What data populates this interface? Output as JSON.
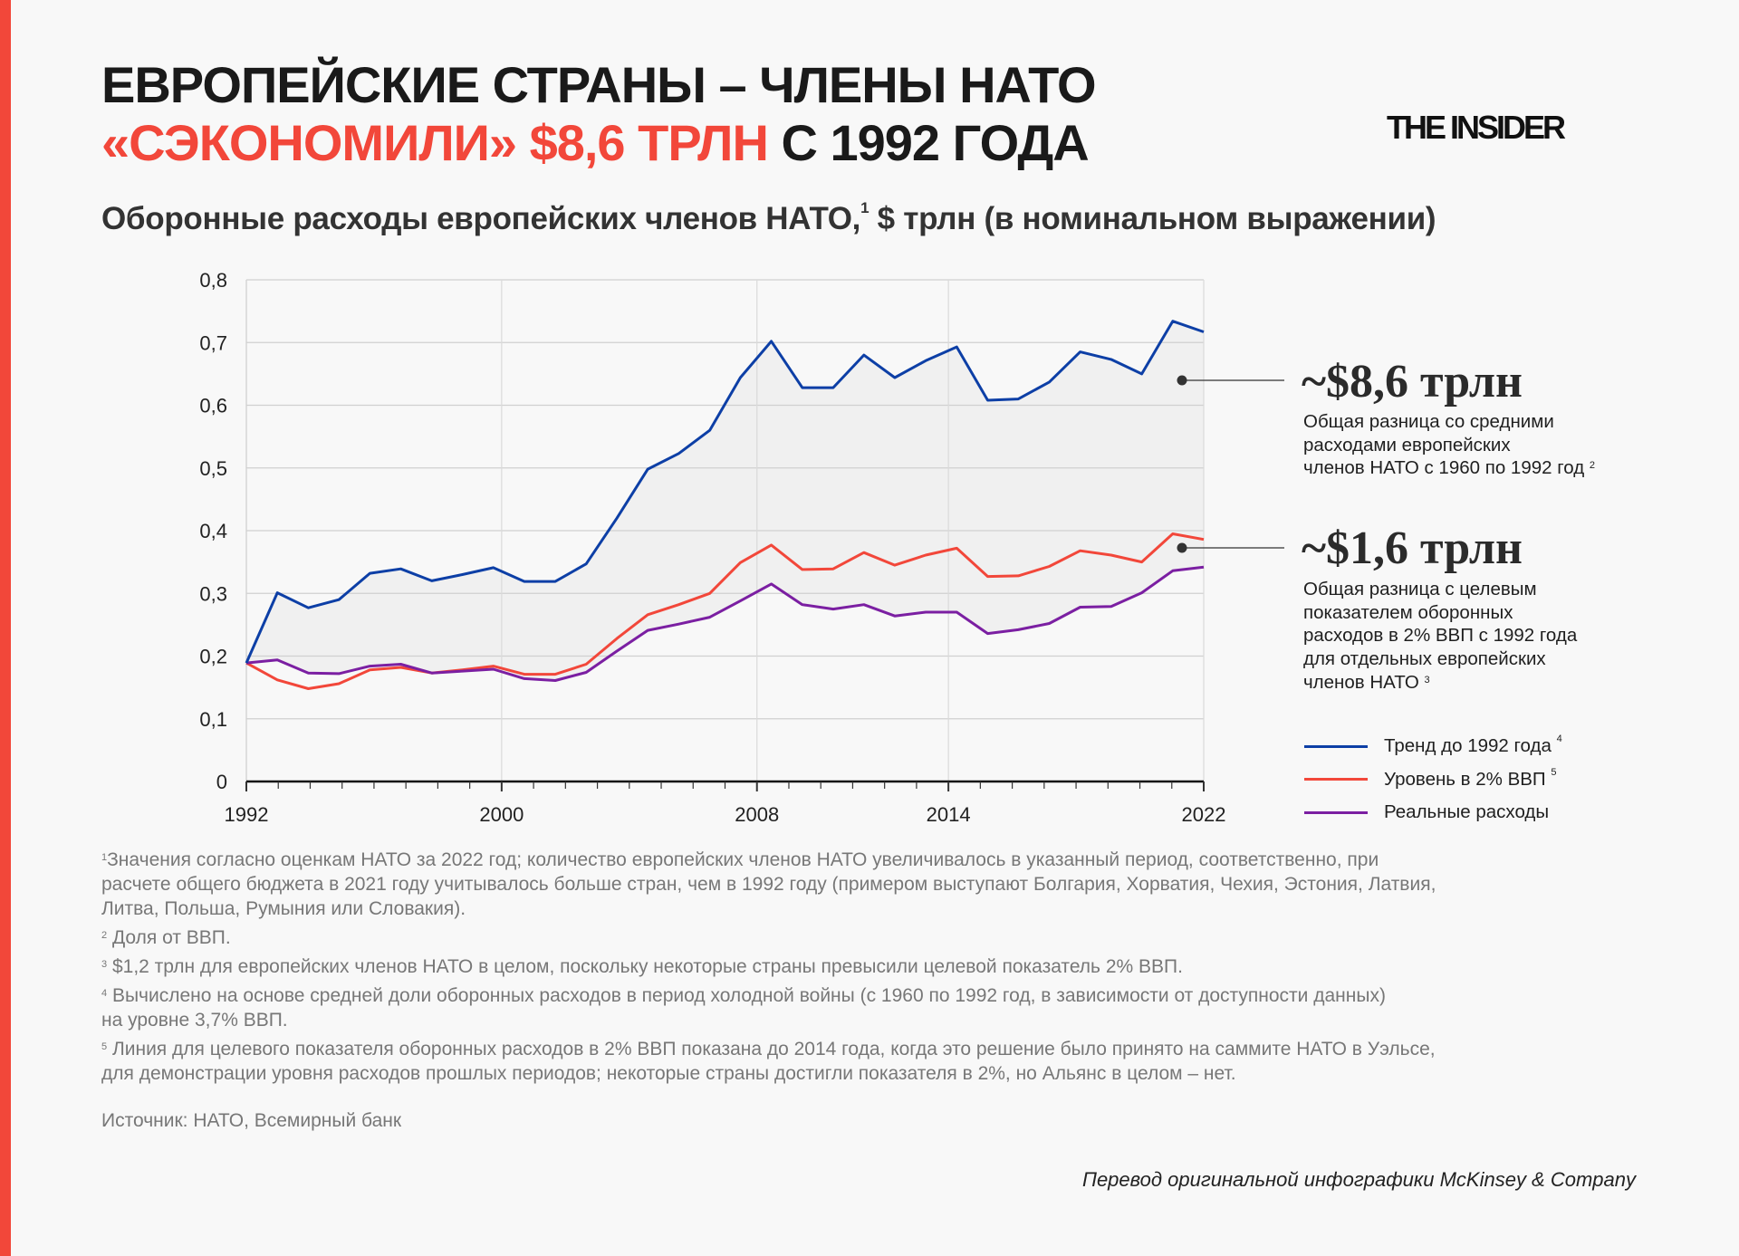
{
  "header": {
    "title_line1": "ЕВРОПЕЙСКИЕ СТРАНЫ – ЧЛЕНЫ НАТО",
    "title_line2_accent": "«СЭКОНОМИЛИ» $8,6 ТРЛН",
    "title_line2_rest": " С 1992 ГОДА",
    "logo": "THE INSIDER",
    "subtitle": "Оборонные расходы европейских членов НАТО,",
    "subtitle_sup": "1",
    "subtitle_rest": " $ трлн (в номинальном выражении)"
  },
  "colors": {
    "accent": "#f2473a",
    "trend": "#0d3fa6",
    "target": "#f2473a",
    "actual": "#7b1fa2",
    "gap_fill": "#ececec"
  },
  "annotations": [
    {
      "value": "~$8,6 трлн",
      "lines": [
        "Общая разница со средними",
        "расходами европейских",
        "членов НАТО с 1960 по 1992 год"
      ],
      "sup": "2"
    },
    {
      "value": "~$1,6 трлн",
      "lines": [
        "Общая разница  с целевым",
        "показателем оборонных",
        "расходов в 2% ВВП с 1992 года",
        "для отдельных европейских",
        "членов НАТО"
      ],
      "sup": "3"
    }
  ],
  "chart_data": {
    "type": "line",
    "title": "Оборонные расходы европейских членов НАТО, $ трлн (в номинальном выражении)",
    "xlabel": "",
    "ylabel": "",
    "xlim": [
      1992,
      2022
    ],
    "ylim": [
      0,
      0.8
    ],
    "x_ticks": [
      "1992",
      "2000",
      "2008",
      "2014",
      "2022"
    ],
    "y_ticks": [
      "0",
      "0,1",
      "0,2",
      "0,3",
      "0,4",
      "0,5",
      "0,6",
      "0,7",
      "0,8"
    ],
    "grid": true,
    "legend_position": "right",
    "x": [
      1992,
      1992.97,
      1993.94,
      1994.9,
      1995.87,
      1996.84,
      1997.81,
      1998.77,
      1999.74,
      2000.71,
      2001.68,
      2002.65,
      2003.61,
      2004.58,
      2005.55,
      2006.52,
      2007.48,
      2008.45,
      2009.42,
      2010.39,
      2011.35,
      2012.32,
      2013.29,
      2014.26,
      2015.23,
      2016.19,
      2017.16,
      2018.13,
      2019.1,
      2020.06,
      2021.03,
      2022
    ],
    "series": [
      {
        "name": "Тренд до 1992 года",
        "sup": "4",
        "color": "#0d3fa6",
        "values": [
          0.189,
          0.301,
          0.277,
          0.29,
          0.332,
          0.339,
          0.32,
          0.33,
          0.341,
          0.319,
          0.319,
          0.347,
          0.42,
          0.498,
          0.523,
          0.56,
          0.644,
          0.702,
          0.628,
          0.628,
          0.68,
          0.644,
          0.671,
          0.693,
          0.608,
          0.61,
          0.637,
          0.685,
          0.673,
          0.65,
          0.734,
          0.717
        ]
      },
      {
        "name": "Уровень в 2% ВВП",
        "sup": "5",
        "color": "#f2473a",
        "values": [
          0.189,
          0.162,
          0.148,
          0.156,
          0.178,
          0.182,
          0.173,
          0.178,
          0.184,
          0.171,
          0.171,
          0.187,
          0.228,
          0.266,
          0.282,
          0.3,
          0.349,
          0.377,
          0.338,
          0.339,
          0.365,
          0.345,
          0.361,
          0.372,
          0.327,
          0.328,
          0.343,
          0.368,
          0.361,
          0.35,
          0.395,
          0.386
        ]
      },
      {
        "name": "Реальные расходы",
        "sup": "",
        "color": "#7b1fa2",
        "values": [
          0.189,
          0.194,
          0.173,
          0.172,
          0.184,
          0.187,
          0.173,
          0.176,
          0.179,
          0.164,
          0.161,
          0.174,
          0.208,
          0.241,
          0.251,
          0.262,
          0.288,
          0.315,
          0.282,
          0.275,
          0.282,
          0.264,
          0.27,
          0.27,
          0.236,
          0.242,
          0.252,
          0.278,
          0.279,
          0.301,
          0.336,
          0.342
        ]
      }
    ]
  },
  "footnotes": {
    "lines": [
      {
        "sup": "1",
        "text": "Значения согласно оценкам НАТО за 2022 год; количество европейских членов НАТО увеличивалось в указанный период, соответственно, при"
      },
      {
        "sup": "",
        "text": "расчете общего бюджета в 2021 году учитывалось больше стран, чем в 1992 году (примером выступают Болгария, Хорватия, Чехия, Эстония, Латвия,"
      },
      {
        "sup": "",
        "text": "Литва, Польша, Румыния или Словакия)."
      },
      {
        "sup": "2",
        "text": " Доля от ВВП."
      },
      {
        "sup": "3",
        "text": " $1,2 трлн для европейских членов НАТО в целом, поскольку некоторые страны превысили целевой показатель 2% ВВП."
      },
      {
        "sup": "4",
        "text": " Вычислено на основе средней доли оборонных расходов в период холодной войны (с 1960 по 1992 год, в зависимости от доступности данных)"
      },
      {
        "sup": "",
        "text": "на уровне 3,7% ВВП."
      },
      {
        "sup": "5",
        "text": " Линия для целевого показателя оборонных расходов в 2% ВВП показана до 2014 года, когда это решение было принято на саммите НАТО в Уэльсе,"
      },
      {
        "sup": "",
        "text": "для демонстрации уровня расходов прошлых периодов; некоторые страны достигли показателя в 2%, но Альянс в целом – нет."
      }
    ],
    "source": "Источник: НАТО, Всемирный банк",
    "credit": "Перевод оригинальной инфографики McKinsey & Company"
  }
}
